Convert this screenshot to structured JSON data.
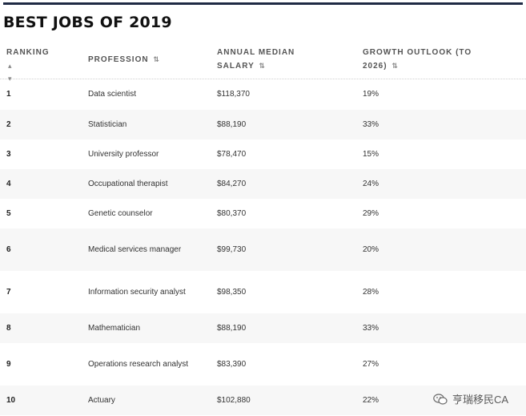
{
  "title": "BEST JOBS OF 2019",
  "columns": {
    "ranking": "RANKING",
    "profession": "PROFESSION",
    "salary_line1": "ANNUAL MEDIAN",
    "salary_line2": "SALARY",
    "growth_line1": "GROWTH OUTLOOK (TO",
    "growth_line2": "2026)"
  },
  "sort_icon": "sort-updown-icon",
  "rows": [
    {
      "rank": "1",
      "profession": "Data scientist",
      "salary": "$118,370",
      "growth": "19%"
    },
    {
      "rank": "2",
      "profession": "Statistician",
      "salary": "$88,190",
      "growth": "33%"
    },
    {
      "rank": "3",
      "profession": "University professor",
      "salary": "$78,470",
      "growth": "15%"
    },
    {
      "rank": "4",
      "profession": "Occupational therapist",
      "salary": "$84,270",
      "growth": "24%"
    },
    {
      "rank": "5",
      "profession": "Genetic counselor",
      "salary": "$80,370",
      "growth": "29%"
    },
    {
      "rank": "6",
      "profession": "Medical services manager",
      "salary": "$99,730",
      "growth": "20%"
    },
    {
      "rank": "7",
      "profession": "Information security analyst",
      "salary": "$98,350",
      "growth": "28%"
    },
    {
      "rank": "8",
      "profession": "Mathematician",
      "salary": "$88,190",
      "growth": "33%"
    },
    {
      "rank": "9",
      "profession": "Operations research analyst",
      "salary": "$83,390",
      "growth": "27%"
    },
    {
      "rank": "10",
      "profession": "Actuary",
      "salary": "$102,880",
      "growth": "22%"
    }
  ],
  "watermark": "亨瑞移民CA"
}
